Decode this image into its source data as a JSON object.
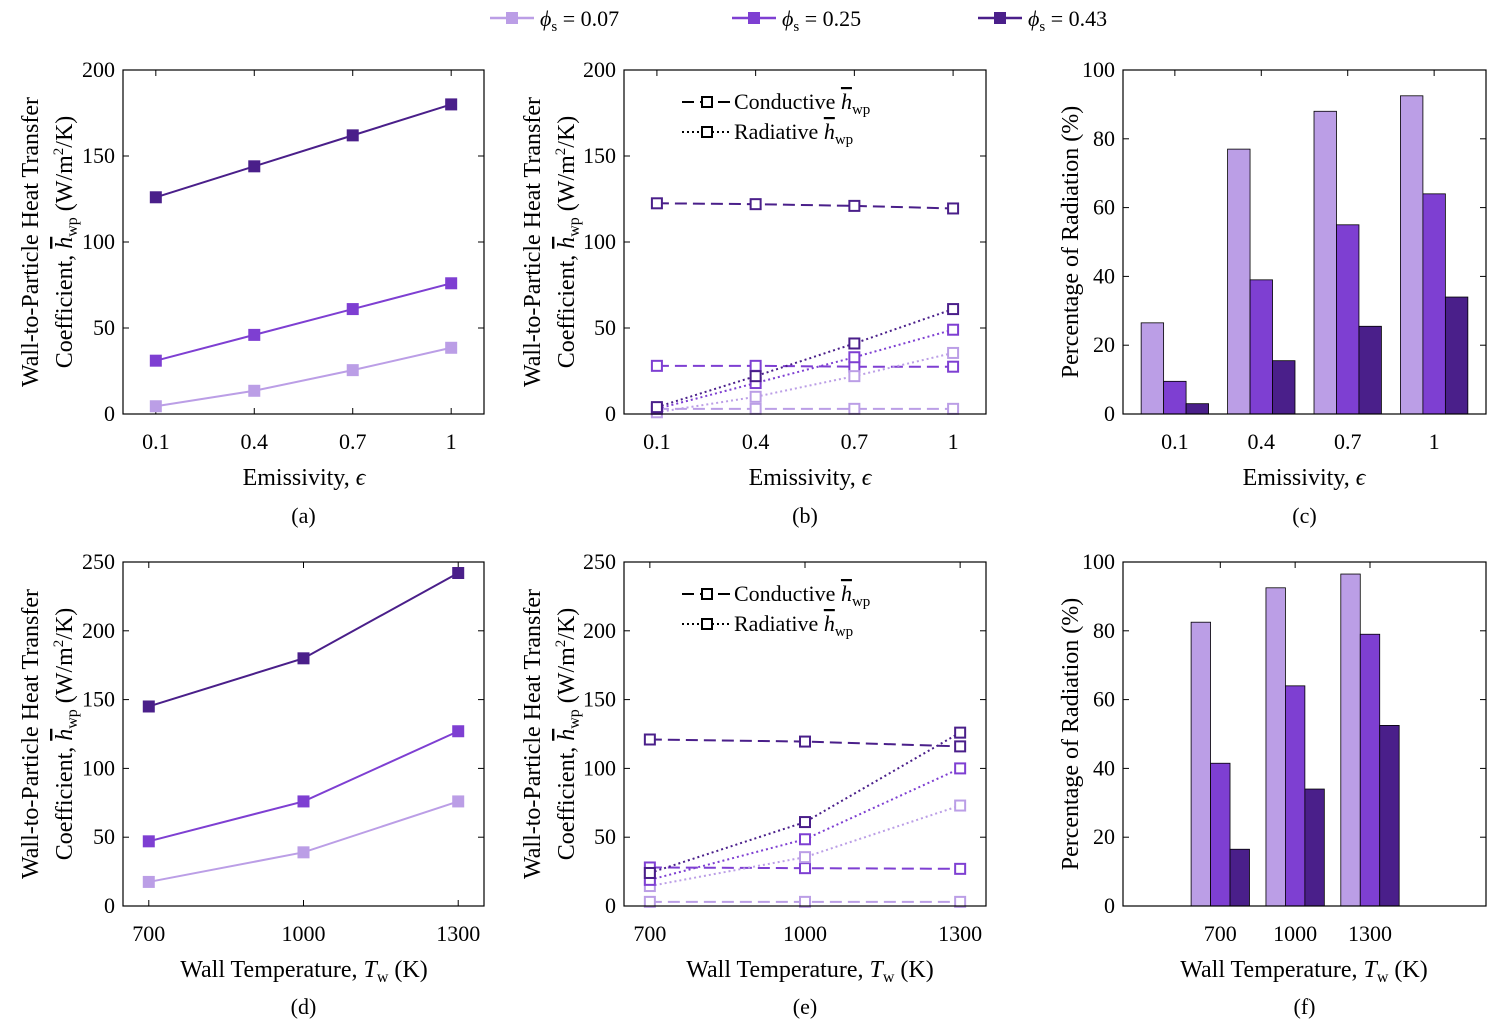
{
  "colors": {
    "light": "#bb9ee6",
    "mid": "#7e3fd2",
    "dark": "#4a1f8a"
  },
  "legend": {
    "entries": [
      {
        "label": "ϕs = 0.07",
        "phi": "ϕ",
        "sub": "s",
        "rest": " = 0.07",
        "color": "#bb9ee6"
      },
      {
        "label": "ϕs = 0.25",
        "phi": "ϕ",
        "sub": "s",
        "rest": " = 0.25",
        "color": "#7e3fd2"
      },
      {
        "label": "ϕs = 0.43",
        "phi": "ϕ",
        "sub": "s",
        "rest": " = 0.43",
        "color": "#4a1f8a"
      }
    ]
  },
  "htc_ylabel": {
    "line1": "Wall-to-Particle Heat Transfer",
    "line2_a": "Coefficient, ",
    "symbol": "h",
    "sub": "wp",
    "line2_b": " (W/m",
    "sup": "2",
    "line2_c": "/K)"
  },
  "mode_legend": {
    "conductive": {
      "text": "Conductive ",
      "symbol": "h",
      "sub": "wp"
    },
    "radiative": {
      "text": "Radiative ",
      "symbol": "h",
      "sub": "wp"
    }
  },
  "xlabels": {
    "emissivity": {
      "text": "Emissivity, ",
      "symbol": "ϵ"
    },
    "temperature": {
      "text": "Wall Temperature, ",
      "symbol": "T",
      "sub": "w",
      "unit": " (K)"
    }
  },
  "radiation_ylabel": "Percentage of Radiation (%)",
  "chart_data": [
    {
      "id": "a",
      "caption": "(a)",
      "type": "line",
      "x": [
        0.1,
        0.4,
        0.7,
        1
      ],
      "xticklabels": [
        "0.1",
        "0.4",
        "0.7",
        "1"
      ],
      "xlim": [
        0,
        1.1
      ],
      "ylim": [
        0,
        200
      ],
      "yticks": [
        0,
        50,
        100,
        150,
        200
      ],
      "series": [
        {
          "name": "ϕs = 0.07",
          "values": [
            4.5,
            13.5,
            25.5,
            38.5
          ]
        },
        {
          "name": "ϕs = 0.25",
          "values": [
            31,
            46,
            61,
            76
          ]
        },
        {
          "name": "ϕs = 0.43",
          "values": [
            126,
            144,
            162,
            180
          ]
        }
      ]
    },
    {
      "id": "b",
      "caption": "(b)",
      "type": "line",
      "x": [
        0.1,
        0.4,
        0.7,
        1
      ],
      "xticklabels": [
        "0.1",
        "0.4",
        "0.7",
        "1"
      ],
      "xlim": [
        0,
        1.1
      ],
      "ylim": [
        0,
        200
      ],
      "yticks": [
        0,
        50,
        100,
        150,
        200
      ],
      "series": [
        {
          "name": "ϕs = 0.07 Conductive",
          "mode": "conductive",
          "values": [
            3,
            3,
            3,
            3
          ]
        },
        {
          "name": "ϕs = 0.25 Conductive",
          "mode": "conductive",
          "values": [
            28,
            28,
            27.5,
            27.5
          ]
        },
        {
          "name": "ϕs = 0.43 Conductive",
          "mode": "conductive",
          "values": [
            122.5,
            122,
            121,
            119.5
          ]
        },
        {
          "name": "ϕs = 0.07 Radiative",
          "mode": "radiative",
          "values": [
            1,
            10,
            22,
            35.5
          ]
        },
        {
          "name": "ϕs = 0.25 Radiative",
          "mode": "radiative",
          "values": [
            3,
            18,
            33,
            49
          ]
        },
        {
          "name": "ϕs = 0.43 Radiative",
          "mode": "radiative",
          "values": [
            4,
            22,
            41,
            61
          ]
        }
      ]
    },
    {
      "id": "c",
      "caption": "(c)",
      "type": "bar",
      "categories": [
        "0.1",
        "0.4",
        "0.7",
        "1"
      ],
      "ylim": [
        0,
        100
      ],
      "yticks": [
        0,
        20,
        40,
        60,
        80,
        100
      ],
      "series": [
        {
          "name": "ϕs = 0.07",
          "values": [
            26.5,
            77,
            88,
            92.5
          ]
        },
        {
          "name": "ϕs = 0.25",
          "values": [
            9.5,
            39,
            55,
            64
          ]
        },
        {
          "name": "ϕs = 0.43",
          "values": [
            3,
            15.5,
            25.5,
            34
          ]
        }
      ]
    },
    {
      "id": "d",
      "caption": "(d)",
      "type": "line",
      "x": [
        700,
        1000,
        1300
      ],
      "xticklabels": [
        "700",
        "1000",
        "1300"
      ],
      "xlim": [
        650,
        1350
      ],
      "ylim": [
        0,
        250
      ],
      "yticks": [
        0,
        50,
        100,
        150,
        200,
        250
      ],
      "series": [
        {
          "name": "ϕs = 0.07",
          "values": [
            17.5,
            39,
            76
          ]
        },
        {
          "name": "ϕs = 0.25",
          "values": [
            47,
            76,
            127
          ]
        },
        {
          "name": "ϕs = 0.43",
          "values": [
            145,
            180,
            242
          ]
        }
      ]
    },
    {
      "id": "e",
      "caption": "(e)",
      "type": "line",
      "x": [
        700,
        1000,
        1300
      ],
      "xticklabels": [
        "700",
        "1000",
        "1300"
      ],
      "xlim": [
        650,
        1350
      ],
      "ylim": [
        0,
        250
      ],
      "yticks": [
        0,
        50,
        100,
        150,
        200,
        250
      ],
      "series": [
        {
          "name": "ϕs = 0.07 Conductive",
          "mode": "conductive",
          "values": [
            3,
            3,
            3
          ]
        },
        {
          "name": "ϕs = 0.25 Conductive",
          "mode": "conductive",
          "values": [
            28,
            27.5,
            27
          ]
        },
        {
          "name": "ϕs = 0.43 Conductive",
          "mode": "conductive",
          "values": [
            121,
            119.5,
            116
          ]
        },
        {
          "name": "ϕs = 0.07 Radiative",
          "mode": "radiative",
          "values": [
            14.5,
            35.5,
            73
          ]
        },
        {
          "name": "ϕs = 0.25 Radiative",
          "mode": "radiative",
          "values": [
            19,
            48.5,
            100
          ]
        },
        {
          "name": "ϕs = 0.43 Radiative",
          "mode": "radiative",
          "values": [
            24,
            61,
            126
          ]
        }
      ]
    },
    {
      "id": "f",
      "caption": "(f)",
      "type": "bar",
      "categories": [
        "700",
        "1000",
        "1300"
      ],
      "ylim": [
        0,
        100
      ],
      "yticks": [
        0,
        20,
        40,
        60,
        80,
        100
      ],
      "series": [
        {
          "name": "ϕs = 0.07",
          "values": [
            82.5,
            92.5,
            96.5
          ]
        },
        {
          "name": "ϕs = 0.25",
          "values": [
            41.5,
            64,
            79
          ]
        },
        {
          "name": "ϕs = 0.43",
          "values": [
            16.5,
            34,
            52.5
          ]
        }
      ]
    }
  ]
}
